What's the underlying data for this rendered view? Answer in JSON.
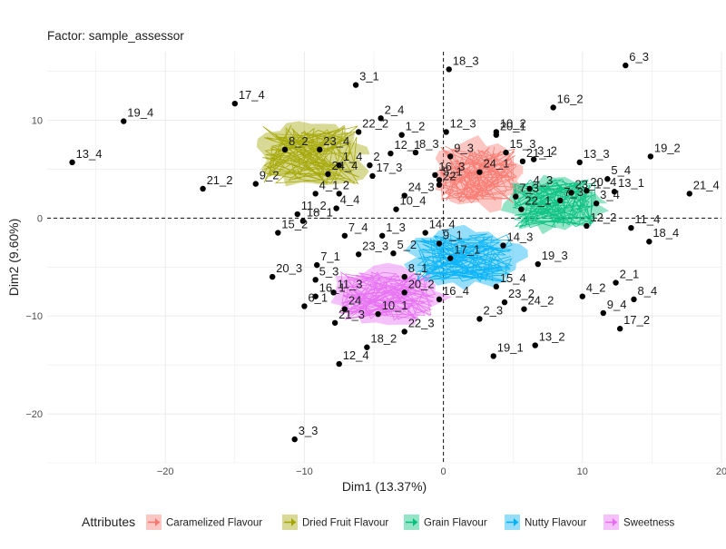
{
  "chart_data": {
    "type": "scatter",
    "subtitle": "Factor: sample_assessor",
    "xlabel": "Dim1 (13.37%)",
    "ylabel": "Dim2 (9.60%)",
    "xlim": [
      -28.5,
      20
    ],
    "ylim": [
      -25,
      17
    ],
    "xticks": [
      -20,
      -10,
      0,
      10,
      20
    ],
    "yticks": [
      -20,
      -10,
      0,
      10
    ],
    "xtick_labels": [
      "−20",
      "−10",
      "0",
      "10",
      "20"
    ],
    "ytick_labels": [
      "−20",
      "−10",
      "0",
      "10"
    ],
    "grid": true,
    "reference_lines": {
      "x": 0,
      "y": 0,
      "style": "dashed"
    },
    "legend_title": "Attributes",
    "legend_position": "bottom",
    "series": [
      {
        "name": "Caramelized Flavour",
        "color": "#F8766D",
        "center": [
          2.5,
          4.5
        ],
        "spread": [
          2.8,
          3.0
        ]
      },
      {
        "name": "Dried Fruit Flavour",
        "color": "#A3A500",
        "center": [
          -9.5,
          6.5
        ],
        "spread": [
          3.5,
          3.0
        ]
      },
      {
        "name": "Grain Flavour",
        "color": "#00BF7D",
        "center": [
          8.0,
          1.5
        ],
        "spread": [
          3.0,
          2.5
        ]
      },
      {
        "name": "Nutty Flavour",
        "color": "#00B0F6",
        "center": [
          1.5,
          -4.0
        ],
        "spread": [
          3.5,
          2.5
        ]
      },
      {
        "name": "Sweetness",
        "color": "#E76BF3",
        "center": [
          -4.0,
          -8.0
        ],
        "spread": [
          3.5,
          2.5
        ]
      }
    ],
    "points": [
      {
        "label": "6_3",
        "x": 13.1,
        "y": 15.6
      },
      {
        "label": "18_3",
        "x": 0.4,
        "y": 15.2
      },
      {
        "label": "3_1",
        "x": -6.3,
        "y": 13.6
      },
      {
        "label": "17_4",
        "x": -15.0,
        "y": 11.7
      },
      {
        "label": "16_2",
        "x": 7.9,
        "y": 11.3
      },
      {
        "label": "19_4",
        "x": -23.0,
        "y": 9.9
      },
      {
        "label": "2_4",
        "x": -4.5,
        "y": 10.2
      },
      {
        "label": "22_2",
        "x": -6.1,
        "y": 8.8
      },
      {
        "label": "12_3",
        "x": 0.2,
        "y": 8.8
      },
      {
        "label": "1_2",
        "x": -3.0,
        "y": 8.5
      },
      {
        "label": "20_1",
        "x": 3.8,
        "y": 8.5
      },
      {
        "label": "10_2",
        "x": 3.8,
        "y": 8.8
      },
      {
        "label": "8_2",
        "x": -11.4,
        "y": 7.0
      },
      {
        "label": "23_4",
        "x": -8.9,
        "y": 7.0
      },
      {
        "label": "12_1",
        "x": -3.8,
        "y": 6.6
      },
      {
        "label": "8_3",
        "x": -2.0,
        "y": 6.7
      },
      {
        "label": "9_3",
        "x": 0.5,
        "y": 6.3
      },
      {
        "label": "15_3",
        "x": 4.5,
        "y": 6.7
      },
      {
        "label": "3_2",
        "x": 6.5,
        "y": 6.0
      },
      {
        "label": "13_4",
        "x": -26.7,
        "y": 5.7
      },
      {
        "label": "13_3",
        "x": 9.8,
        "y": 5.7
      },
      {
        "label": "19_2",
        "x": 14.9,
        "y": 6.3
      },
      {
        "label": "1_4",
        "x": -7.5,
        "y": 5.4
      },
      {
        "label": "2",
        "x": -5.3,
        "y": 5.4
      },
      {
        "label": "21_1",
        "x": 5.7,
        "y": 5.8
      },
      {
        "label": "16_3",
        "x": -0.6,
        "y": 4.4
      },
      {
        "label": "5_1",
        "x": -0.3,
        "y": 3.9
      },
      {
        "label": "24_1",
        "x": 2.6,
        "y": 4.7
      },
      {
        "label": "5_4",
        "x": 11.8,
        "y": 4.0
      },
      {
        "label": "24_4",
        "x": -8.3,
        "y": 4.5
      },
      {
        "label": "17_3",
        "x": -5.1,
        "y": 4.3
      },
      {
        "label": "9_2",
        "x": -13.5,
        "y": 3.5
      },
      {
        "label": "22",
        "x": -0.3,
        "y": 3.4
      },
      {
        "label": "4_3",
        "x": 6.2,
        "y": 3.0
      },
      {
        "label": "23_1",
        "x": 9.2,
        "y": 2.6
      },
      {
        "label": "20_4",
        "x": 10.3,
        "y": 2.8
      },
      {
        "label": "13_1",
        "x": 12.3,
        "y": 2.7
      },
      {
        "label": "21_4",
        "x": 17.7,
        "y": 2.5
      },
      {
        "label": "21_2",
        "x": -17.3,
        "y": 3.0
      },
      {
        "label": "4_1",
        "x": -9.2,
        "y": 2.5
      },
      {
        "label": "2",
        "x": -7.5,
        "y": 2.5
      },
      {
        "label": "24_3",
        "x": -2.8,
        "y": 2.3
      },
      {
        "label": "7_3",
        "x": 5.2,
        "y": 2.2
      },
      {
        "label": "11_2",
        "x": -10.5,
        "y": 0.4
      },
      {
        "label": "22_1",
        "x": 5.6,
        "y": 0.9
      },
      {
        "label": "7_3",
        "x": 8.4,
        "y": 1.8
      },
      {
        "label": "3_4",
        "x": 11.0,
        "y": 1.5
      },
      {
        "label": "4_4",
        "x": -7.7,
        "y": 1.0
      },
      {
        "label": "10_4",
        "x": -3.4,
        "y": 0.9
      },
      {
        "label": "18_1",
        "x": -10.1,
        "y": -0.3
      },
      {
        "label": "12_2",
        "x": 10.3,
        "y": -0.8
      },
      {
        "label": "11_4",
        "x": 13.5,
        "y": -1.0
      },
      {
        "label": "15_2",
        "x": -11.9,
        "y": -1.5
      },
      {
        "label": "7_4",
        "x": -7.1,
        "y": -1.8
      },
      {
        "label": "1_3",
        "x": -4.4,
        "y": -1.8
      },
      {
        "label": "14_4",
        "x": -1.3,
        "y": -1.5
      },
      {
        "label": "9_1",
        "x": -0.3,
        "y": -2.6
      },
      {
        "label": "14_3",
        "x": 4.3,
        "y": -2.8
      },
      {
        "label": "18_4",
        "x": 14.8,
        "y": -2.4
      },
      {
        "label": "5_2",
        "x": -3.6,
        "y": -3.6
      },
      {
        "label": "7_1",
        "x": -9.1,
        "y": -4.8
      },
      {
        "label": "23_3",
        "x": -6.1,
        "y": -3.7
      },
      {
        "label": "17_1",
        "x": 0.5,
        "y": -4.1
      },
      {
        "label": "19_3",
        "x": 6.8,
        "y": -4.7
      },
      {
        "label": "20_3",
        "x": -12.3,
        "y": -6.0
      },
      {
        "label": "8_1",
        "x": -2.8,
        "y": -6.0
      },
      {
        "label": "15_4",
        "x": 3.8,
        "y": -7.0
      },
      {
        "label": "2_1",
        "x": 12.4,
        "y": -6.6
      },
      {
        "label": "5_3",
        "x": -9.2,
        "y": -6.3
      },
      {
        "label": "11_3",
        "x": -7.9,
        "y": -7.6
      },
      {
        "label": "20_2",
        "x": -2.8,
        "y": -7.6
      },
      {
        "label": "4_2",
        "x": 10.0,
        "y": -8.0
      },
      {
        "label": "16_1",
        "x": -9.2,
        "y": -8.0
      },
      {
        "label": "16_4",
        "x": -0.3,
        "y": -8.3
      },
      {
        "label": "23_2",
        "x": 4.4,
        "y": -8.6
      },
      {
        "label": "9_4",
        "x": 11.5,
        "y": -9.7
      },
      {
        "label": "8_4",
        "x": 13.7,
        "y": -8.3
      },
      {
        "label": "24",
        "x": -7.1,
        "y": -9.3
      },
      {
        "label": "10_1",
        "x": -4.7,
        "y": -9.8
      },
      {
        "label": "6_1",
        "x": -10.0,
        "y": -9.0
      },
      {
        "label": "24_2",
        "x": 5.8,
        "y": -9.3
      },
      {
        "label": "2_3",
        "x": 2.6,
        "y": -10.3
      },
      {
        "label": "21_3",
        "x": -7.8,
        "y": -10.7
      },
      {
        "label": "22_3",
        "x": -2.8,
        "y": -11.6
      },
      {
        "label": "17_2",
        "x": 12.7,
        "y": -11.3
      },
      {
        "label": "19_1",
        "x": 3.6,
        "y": -14.1
      },
      {
        "label": "13_2",
        "x": 6.6,
        "y": -13.0
      },
      {
        "label": "18_2",
        "x": -5.5,
        "y": -13.2
      },
      {
        "label": "12_4",
        "x": -7.5,
        "y": -14.9
      },
      {
        "label": "3_3",
        "x": -10.7,
        "y": -22.6
      }
    ]
  }
}
